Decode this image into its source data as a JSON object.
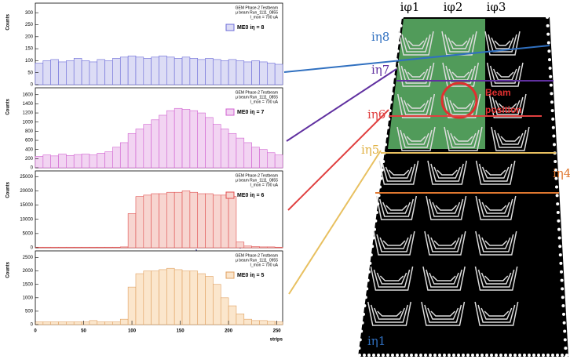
{
  "chart_data": [
    {
      "type": "histogram",
      "y_label": "Counts",
      "color": "#6b6bd8",
      "fill": "#dcdcf5",
      "annotation": [
        "GEM Phase-2 Testbeam",
        "μ beam Run_1111_0855",
        "I_mon = 700 uA"
      ],
      "legend": "ME0 iη = 8",
      "bins": [
        0,
        8,
        16,
        24,
        32,
        40,
        48,
        56,
        64,
        72,
        80,
        88,
        96,
        104,
        112,
        120,
        128,
        136,
        144,
        152,
        160,
        168,
        176,
        184,
        192,
        200,
        208,
        216,
        224,
        232,
        240,
        248,
        256
      ],
      "values": [
        90,
        100,
        105,
        95,
        100,
        110,
        100,
        95,
        105,
        100,
        110,
        115,
        120,
        115,
        110,
        115,
        120,
        115,
        110,
        115,
        110,
        105,
        110,
        105,
        100,
        105,
        100,
        95,
        100,
        95,
        90,
        85
      ],
      "xlim": [
        0,
        256
      ],
      "ylim": [
        0,
        340
      ],
      "yticks": [
        0,
        50,
        100,
        150,
        200,
        250,
        300
      ]
    },
    {
      "type": "histogram",
      "y_label": "Counts",
      "color": "#d060d0",
      "fill": "#f2d4f2",
      "annotation": [
        "GEM Phase-2 Testbeam",
        "μ beam Run_1111_0855",
        "I_mon = 700 uA"
      ],
      "legend": "ME0 iη = 7",
      "bins": [
        0,
        8,
        16,
        24,
        32,
        40,
        48,
        56,
        64,
        72,
        80,
        88,
        96,
        104,
        112,
        120,
        128,
        136,
        144,
        152,
        160,
        168,
        176,
        184,
        192,
        200,
        208,
        216,
        224,
        232,
        240,
        248,
        256
      ],
      "values": [
        250,
        280,
        260,
        300,
        270,
        290,
        300,
        280,
        320,
        350,
        450,
        550,
        750,
        850,
        950,
        1050,
        1150,
        1250,
        1300,
        1280,
        1250,
        1200,
        1100,
        950,
        850,
        750,
        650,
        550,
        450,
        400,
        330,
        280
      ],
      "xlim": [
        0,
        256
      ],
      "ylim": [
        0,
        1750
      ],
      "yticks": [
        0,
        200,
        400,
        600,
        800,
        1000,
        1200,
        1400,
        1600
      ]
    },
    {
      "type": "histogram",
      "y_label": "Counts",
      "color": "#e05050",
      "fill": "#f7d5d0",
      "annotation": [
        "GEM Phase-2 Testbeam",
        "μ beam Run_1111_0855",
        "I_mon = 700 uA"
      ],
      "legend": "ME0 iη = 6",
      "bins": [
        0,
        8,
        16,
        24,
        32,
        40,
        48,
        56,
        64,
        72,
        80,
        88,
        96,
        104,
        112,
        120,
        128,
        136,
        144,
        152,
        160,
        168,
        176,
        184,
        192,
        200,
        208,
        216,
        224,
        232,
        240,
        248,
        256
      ],
      "values": [
        200,
        200,
        200,
        200,
        200,
        200,
        200,
        200,
        200,
        200,
        200,
        300,
        12000,
        18000,
        18500,
        19000,
        19000,
        19500,
        19500,
        20000,
        19500,
        19000,
        19000,
        18500,
        18500,
        18000,
        2000,
        600,
        400,
        300,
        300,
        200
      ],
      "xlim": [
        0,
        256
      ],
      "ylim": [
        0,
        27000
      ],
      "yticks": [
        0,
        5000,
        10000,
        15000,
        20000,
        25000
      ]
    },
    {
      "type": "histogram",
      "y_label": "Counts",
      "x_label": "strips",
      "color": "#e0a060",
      "fill": "#fbe6cc",
      "annotation": [
        "GEM Phase-2 Testbeam",
        "μ beam Run_1111_0955",
        "I_mon = 700 uA"
      ],
      "legend": "ME0 iη = 5",
      "bins": [
        0,
        8,
        16,
        24,
        32,
        40,
        48,
        56,
        64,
        72,
        80,
        88,
        96,
        104,
        112,
        120,
        128,
        136,
        144,
        152,
        160,
        168,
        176,
        184,
        192,
        200,
        208,
        216,
        224,
        232,
        240,
        248,
        256
      ],
      "values": [
        100,
        100,
        100,
        100,
        100,
        100,
        100,
        150,
        100,
        100,
        100,
        200,
        1400,
        1900,
        2000,
        2000,
        2050,
        2100,
        2050,
        2000,
        2000,
        1900,
        1800,
        1500,
        1000,
        700,
        400,
        200,
        150,
        150,
        120,
        100
      ],
      "xlim": [
        0,
        256
      ],
      "ylim": [
        0,
        2750
      ],
      "yticks": [
        0,
        500,
        1000,
        1500,
        2000,
        2500
      ],
      "xticks": [
        0,
        50,
        100,
        150,
        200,
        250
      ]
    }
  ],
  "detector": {
    "phi_labels": [
      "iφ1",
      "iφ2",
      "iφ3"
    ],
    "eta_labels": [
      "iη8",
      "iη7",
      "iη6",
      "iη5",
      "iη4",
      "iη1"
    ],
    "beam_label": [
      "Beam",
      "position"
    ]
  }
}
